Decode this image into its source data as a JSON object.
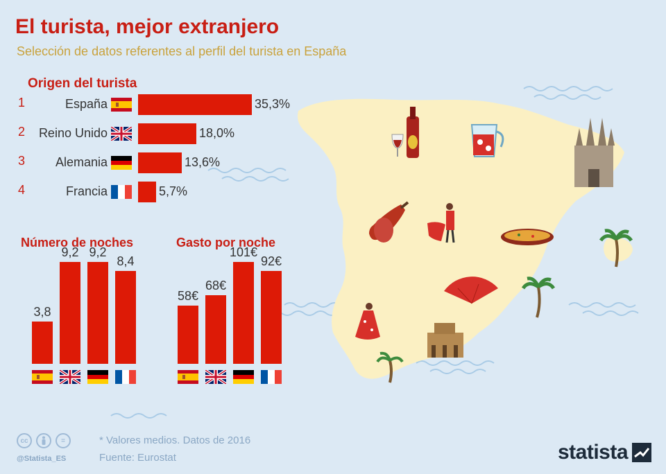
{
  "header": {
    "title": "El turista, mejor extranjero",
    "subtitle": "Selección de datos referentes al perfil del turista en España"
  },
  "colors": {
    "accent": "#c81e14",
    "bar": "#dd1a06",
    "subtitle": "#c9a23c",
    "background": "#dce9f4",
    "map": "#fbf0c3"
  },
  "chart_data": [
    {
      "type": "bar",
      "orientation": "horizontal",
      "title": "Origen del turista",
      "categories": [
        "España",
        "Reino Unido",
        "Alemania",
        "Francia"
      ],
      "ranks": [
        "1",
        "2",
        "3",
        "4"
      ],
      "values": [
        35.3,
        18.0,
        13.6,
        5.7
      ],
      "value_labels": [
        "35,3%",
        "18,0%",
        "13,6%",
        "5,7%"
      ],
      "flags": [
        "flag-spain-icon",
        "flag-uk-icon",
        "flag-germany-icon",
        "flag-france-icon"
      ]
    },
    {
      "type": "bar",
      "title": "Número de noches",
      "categories": [
        "España",
        "Reino Unido",
        "Alemania",
        "Francia"
      ],
      "values": [
        3.8,
        9.2,
        9.2,
        8.4
      ],
      "value_labels": [
        "3,8",
        "9,2",
        "9,2",
        "8,4"
      ]
    },
    {
      "type": "bar",
      "title": "Gasto por noche",
      "categories": [
        "España",
        "Reino Unido",
        "Alemania",
        "Francia"
      ],
      "values": [
        58,
        68,
        101,
        92
      ],
      "value_labels": [
        "58€",
        "68€",
        "101€",
        "92€"
      ]
    }
  ],
  "footer": {
    "note": "* Valores medios. Datos de 2016",
    "source": "Fuente: Eurostat",
    "handle": "@Statista_ES",
    "brand": "statista",
    "license_icons": [
      "cc",
      "by",
      "="
    ]
  }
}
